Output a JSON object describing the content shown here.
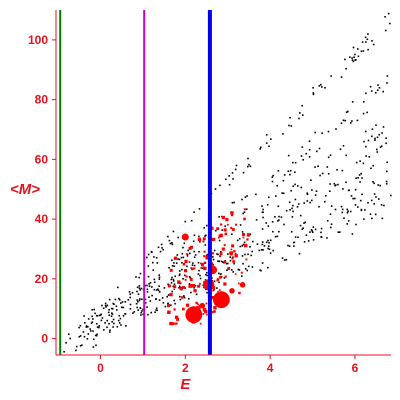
{
  "chart_data": {
    "type": "scatter",
    "xlabel": "E",
    "ylabel": "<M>",
    "xlim": [
      -1.05,
      6.85
    ],
    "ylim": [
      -5.5,
      110
    ],
    "x_ticks": [
      "0",
      "2",
      "4",
      "6"
    ],
    "y_ticks": [
      "0",
      "20",
      "40",
      "60",
      "80",
      "100"
    ],
    "x_tick_values": [
      0,
      2,
      4,
      6
    ],
    "y_tick_values": [
      0,
      20,
      40,
      60,
      80,
      100
    ],
    "colors": {
      "axis": "#e8101c",
      "black_points": "#000000",
      "red_points": "#ff0000",
      "vline_green": "#008000",
      "vline_magenta": "#cc00cc",
      "vline_blue": "#0000ee"
    },
    "vertical_lines": [
      {
        "x": -0.95,
        "color": "#008000",
        "width": 2
      },
      {
        "x": 1.03,
        "color": "#cc00cc",
        "width": 2
      },
      {
        "x": 2.58,
        "color": "#0000ee",
        "width": 4
      }
    ],
    "series": [
      {
        "marker": "small-black-dot",
        "bands": [
          {
            "x0": -0.95,
            "y0": -3,
            "x1": 6.85,
            "y1": 107,
            "n": 110,
            "spread": 3
          },
          {
            "x0": -0.6,
            "y0": -1,
            "x1": 6.85,
            "y1": 86,
            "n": 130,
            "spread": 4
          },
          {
            "x0": -0.5,
            "y0": -2,
            "x1": 6.85,
            "y1": 70,
            "n": 160,
            "spread": 6
          },
          {
            "x0": -0.3,
            "y0": 3,
            "x1": 6.85,
            "y1": 55,
            "n": 170,
            "spread": 6
          },
          {
            "x0": 0.0,
            "y0": 6,
            "x1": 6.85,
            "y1": 45,
            "n": 150,
            "spread": 5
          }
        ]
      },
      {
        "marker": "small-red-square",
        "cluster": {
          "x_range": [
            1.6,
            3.5
          ],
          "y_range": [
            5,
            50
          ],
          "n": 140
        }
      },
      {
        "marker": "large-red-circle",
        "points": [
          {
            "x": 2.2,
            "y": 8,
            "size": 6
          },
          {
            "x": 2.85,
            "y": 13,
            "size": 6
          },
          {
            "x": 2.55,
            "y": 18,
            "size": 4
          },
          {
            "x": 2.65,
            "y": 23,
            "size": 3
          },
          {
            "x": 2.0,
            "y": 34,
            "size": 2.5
          },
          {
            "x": 2.4,
            "y": 11,
            "size": 2
          },
          {
            "x": 3.35,
            "y": 18,
            "size": 2
          },
          {
            "x": 3.1,
            "y": 16,
            "size": 2
          }
        ]
      }
    ]
  }
}
